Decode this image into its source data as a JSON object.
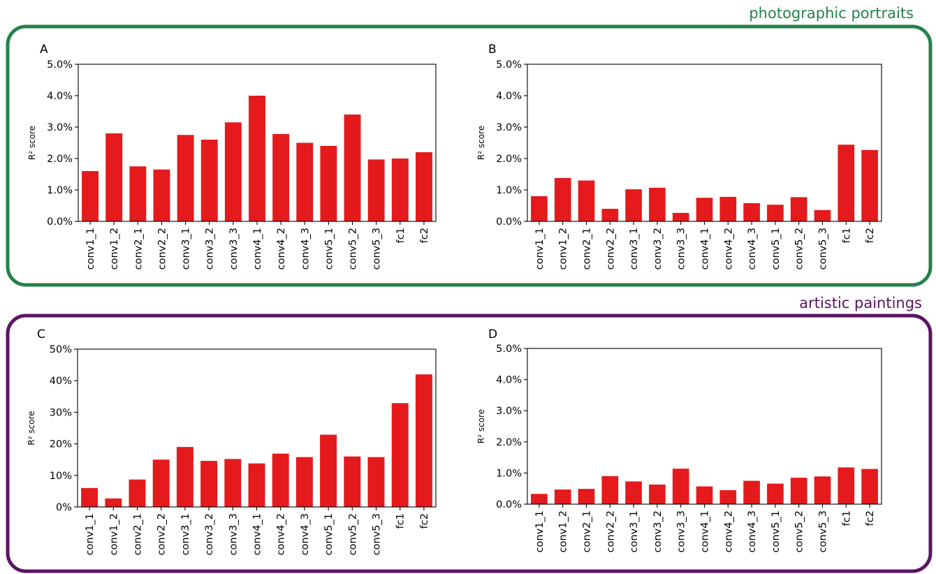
{
  "colors": {
    "bar": "#e41a1c",
    "photo_group": "#24814a",
    "art_group": "#5b1462"
  },
  "groups": {
    "photo": {
      "title": "photographic portraits"
    },
    "art": {
      "title": "artistic paintings"
    }
  },
  "chart_data": [
    {
      "panel": "A",
      "type": "bar",
      "ylabel": "R² score",
      "categories": [
        "conv1_1",
        "conv1_2",
        "conv2_1",
        "conv2_2",
        "conv3_1",
        "conv3_2",
        "conv3_3",
        "conv4_1",
        "conv4_2",
        "conv4_3",
        "conv5_1",
        "conv5_2",
        "conv5_3",
        "fc1",
        "fc2"
      ],
      "values": [
        1.6,
        2.8,
        1.75,
        1.65,
        2.75,
        2.6,
        3.15,
        4.0,
        2.78,
        2.5,
        2.4,
        3.4,
        1.97,
        2.0,
        2.2
      ],
      "ylim": [
        0,
        5
      ],
      "yticks": [
        0,
        1,
        2,
        3,
        4,
        5
      ],
      "ytick_labels": [
        "0.0%",
        "1.0%",
        "2.0%",
        "3.0%",
        "4.0%",
        "5.0%"
      ]
    },
    {
      "panel": "B",
      "type": "bar",
      "ylabel": "R² score",
      "categories": [
        "conv1_1",
        "conv1_2",
        "conv2_1",
        "conv2_2",
        "conv3_1",
        "conv3_2",
        "conv3_3",
        "conv4_1",
        "conv4_2",
        "conv4_3",
        "conv5_1",
        "conv5_2",
        "conv5_3",
        "fc1",
        "fc2"
      ],
      "values": [
        0.8,
        1.38,
        1.3,
        0.4,
        1.02,
        1.07,
        0.27,
        0.75,
        0.78,
        0.58,
        0.53,
        0.77,
        0.36,
        2.44,
        2.27
      ],
      "ylim": [
        0,
        5
      ],
      "yticks": [
        0,
        1,
        2,
        3,
        4,
        5
      ],
      "ytick_labels": [
        "0.0%",
        "1.0%",
        "2.0%",
        "3.0%",
        "4.0%",
        "5.0%"
      ]
    },
    {
      "panel": "C",
      "type": "bar",
      "ylabel": "R² score",
      "categories": [
        "conv1_1",
        "conv1_2",
        "conv2_1",
        "conv2_2",
        "conv3_1",
        "conv3_2",
        "conv3_3",
        "conv4_1",
        "conv4_2",
        "conv4_3",
        "conv5_1",
        "conv5_2",
        "conv5_3",
        "fc1",
        "fc2"
      ],
      "values": [
        6,
        2.7,
        8.7,
        15,
        19,
        14.6,
        15.2,
        13.8,
        16.9,
        15.8,
        22.9,
        16,
        15.8,
        32.9,
        42
      ],
      "ylim": [
        0,
        50
      ],
      "yticks": [
        0,
        10,
        20,
        30,
        40,
        50
      ],
      "ytick_labels": [
        "0%",
        "10%",
        "20%",
        "30%",
        "40%",
        "50%"
      ]
    },
    {
      "panel": "D",
      "type": "bar",
      "ylabel": "R² score",
      "categories": [
        "conv1_1",
        "conv1_2",
        "conv2_1",
        "conv2_2",
        "conv3_1",
        "conv3_2",
        "conv3_3",
        "conv4_1",
        "conv4_2",
        "conv4_3",
        "conv5_1",
        "conv5_2",
        "conv5_3",
        "fc1",
        "fc2"
      ],
      "values": [
        0.33,
        0.47,
        0.49,
        0.9,
        0.73,
        0.63,
        1.14,
        0.57,
        0.45,
        0.75,
        0.66,
        0.85,
        0.89,
        1.18,
        1.13
      ],
      "ylim": [
        0,
        5
      ],
      "yticks": [
        0,
        1,
        2,
        3,
        4,
        5
      ],
      "ytick_labels": [
        "0.0%",
        "1.0%",
        "2.0%",
        "3.0%",
        "4.0%",
        "5.0%"
      ]
    }
  ]
}
